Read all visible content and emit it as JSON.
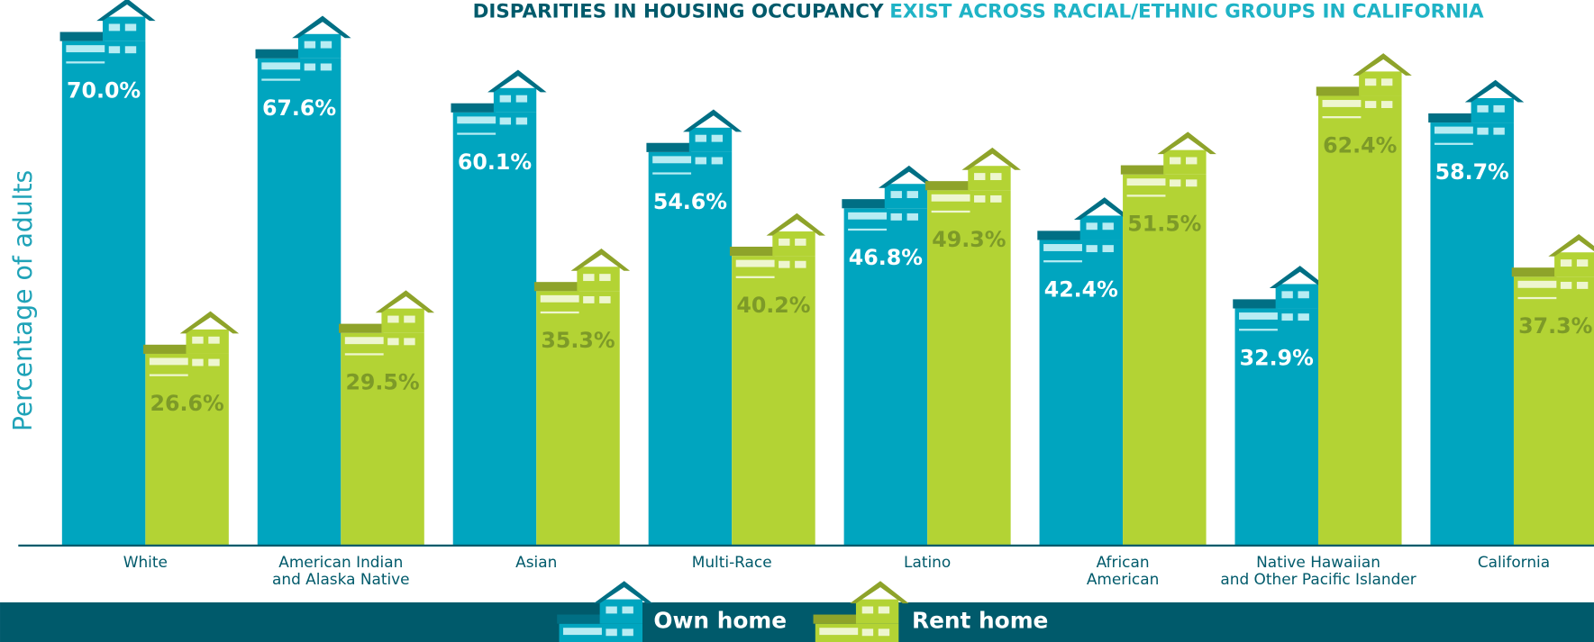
{
  "chart_data": {
    "type": "bar",
    "title": [
      "DISPARITIES IN HOUSING OCCUPANCY",
      "EXIST ACROSS RACIAL/ETHNIC GROUPS IN CALIFORNIA"
    ],
    "y_label": "Percentage of adults",
    "categories": [
      [
        "White"
      ],
      [
        "American Indian",
        "and Alaska Native"
      ],
      [
        "Asian"
      ],
      [
        "Multi-Race"
      ],
      [
        "Latino"
      ],
      [
        "African",
        "American"
      ],
      [
        "Native Hawaiian",
        "and Other Pacific Islander"
      ],
      [
        "California"
      ]
    ],
    "series": [
      {
        "name": "Own home",
        "color": "#00a5bf",
        "values": [
          70.0,
          67.6,
          60.1,
          54.6,
          46.8,
          42.4,
          32.9,
          58.7
        ],
        "value_labels": [
          "70.0%",
          "67.6%",
          "60.1%",
          "54.6%",
          "46.8%",
          "42.4%",
          "32.9%",
          "58.7%"
        ]
      },
      {
        "name": "Rent home",
        "color": "#b3d334",
        "values": [
          26.6,
          29.5,
          35.3,
          40.2,
          49.3,
          51.5,
          62.4,
          37.3
        ],
        "value_labels": [
          "26.6%",
          "29.5%",
          "35.3%",
          "40.2%",
          "49.3%",
          "51.5%",
          "62.4%",
          "37.3%"
        ]
      }
    ],
    "ylim": [
      0,
      75
    ],
    "legend": "bottom"
  }
}
